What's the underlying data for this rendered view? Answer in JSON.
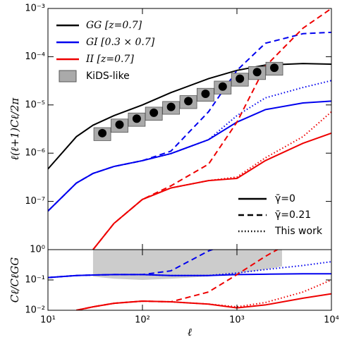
{
  "chart_data": [
    {
      "type": "line",
      "ylabel": "ℓ(ℓ+1)Cℓ/2π",
      "log_x": true,
      "log_y": true,
      "xlim": [
        10,
        10000
      ],
      "ylim": [
        1e-08,
        0.001
      ],
      "yticks": [
        {
          "value": 1e-07,
          "label": "10⁻⁷"
        },
        {
          "value": 1e-06,
          "label": "10⁻⁶"
        },
        {
          "value": 1e-05,
          "label": "10⁻⁵"
        },
        {
          "value": 0.0001,
          "label": "10⁻⁴"
        },
        {
          "value": 0.001,
          "label": "10⁻³"
        }
      ],
      "x": [
        10,
        20,
        30,
        50,
        100,
        200,
        500,
        1000,
        2000,
        5000,
        10000
      ],
      "series": [
        {
          "color": "#000000",
          "dash": "solid",
          "values": [
            4.7e-07,
            2.2e-06,
            3.8e-06,
            6e-06,
            1e-05,
            1.8e-05,
            3.5e-05,
            5.2e-05,
            6.7e-05,
            7.2e-05,
            7e-05
          ]
        },
        {
          "color": "#0000ee",
          "dash": "solid",
          "values": [
            6.3e-08,
            2.4e-07,
            3.8e-07,
            5.3e-07,
            7e-07,
            9.8e-07,
            1.9e-06,
            4.4e-06,
            8e-06,
            1.1e-05,
            1.2e-05
          ]
        },
        {
          "color": "#0000ee",
          "dash": "dashed",
          "values": [
            6.3e-08,
            2.4e-07,
            3.8e-07,
            5.3e-07,
            7e-07,
            1.1e-06,
            7.2e-06,
            5.2e-05,
            0.00019,
            0.0003,
            0.00032
          ]
        },
        {
          "color": "#0000ee",
          "dash": "dotted",
          "values": [
            6.3e-08,
            2.4e-07,
            3.8e-07,
            5.3e-07,
            7e-07,
            9.8e-07,
            1.9e-06,
            6e-06,
            1.4e-05,
            2.3e-05,
            3.2e-05
          ]
        },
        {
          "color": "#ee0000",
          "dash": "solid",
          "values": [
            null,
            null,
            1e-08,
            3.5e-08,
            1.1e-07,
            1.9e-07,
            2.7e-07,
            3e-07,
            7e-07,
            1.6e-06,
            2.6e-06
          ]
        },
        {
          "color": "#ee0000",
          "dash": "dashed",
          "values": [
            null,
            null,
            1e-08,
            3.5e-08,
            1.1e-07,
            2.1e-07,
            5.9e-07,
            4.4e-06,
            6.3e-05,
            0.00039,
            0.001
          ]
        },
        {
          "color": "#ee0000",
          "dash": "dotted",
          "values": [
            null,
            null,
            1e-08,
            3.5e-08,
            1.1e-07,
            1.9e-07,
            2.7e-07,
            3.2e-07,
            8e-07,
            2.2e-06,
            7.2e-06
          ]
        }
      ],
      "points": {
        "name": "KiDS-like",
        "color": "#000000",
        "box_color": "#aaaaaa",
        "x": [
          37.6,
          57.2,
          87,
          132,
          201,
          306,
          465,
          707,
          1075,
          1635,
          2487
        ],
        "values": [
          2.6e-06,
          3.9e-06,
          5.2e-06,
          6.9e-06,
          9.1e-06,
          1.2e-05,
          1.7e-05,
          2.4e-05,
          3.5e-05,
          4.8e-05,
          5.9e-05
        ],
        "errors": [
          7.8e-07,
          1.2e-06,
          1.6e-06,
          2.1e-06,
          2.7e-06,
          3.6e-06,
          5.1e-06,
          7.2e-06,
          1.05e-05,
          1.44e-05,
          1.77e-05
        ]
      },
      "legend": [
        {
          "label": "GG [z=0.7]",
          "color": "#000000"
        },
        {
          "label": "GI [0.3 × 0.7]",
          "color": "#0000ee"
        },
        {
          "label": "II [z=0.7]",
          "color": "#ee0000"
        }
      ],
      "style_legend": [
        {
          "label": "γ̄=0",
          "dash": "solid"
        },
        {
          "label": "γ̄=0.21",
          "dash": "dashed"
        },
        {
          "label": "This work",
          "dash": "dotted"
        }
      ]
    },
    {
      "type": "line",
      "ylabel": "Cℓ/CℓGG",
      "xlabel": "ℓ",
      "log_x": true,
      "log_y": true,
      "xlim": [
        10,
        10000
      ],
      "ylim": [
        0.01,
        1
      ],
      "xticks": [
        {
          "value": 10,
          "label": "10¹"
        },
        {
          "value": 100,
          "label": "10²"
        },
        {
          "value": 1000,
          "label": "10³"
        },
        {
          "value": 10000,
          "label": "10⁴"
        }
      ],
      "yticks": [
        {
          "value": 0.01,
          "label": "10⁻²"
        },
        {
          "value": 0.1,
          "label": "10⁻¹"
        },
        {
          "value": 1,
          "label": "10⁰"
        }
      ],
      "band": {
        "color": "#cccccc",
        "x": [
          30,
          50,
          100,
          200,
          500,
          1000,
          2000,
          3000
        ],
        "lower": [
          0.13,
          0.11,
          0.1,
          0.11,
          0.13,
          0.16,
          0.22,
          0.28
        ],
        "upper": [
          1,
          1,
          1,
          1,
          1,
          1,
          1,
          1
        ]
      },
      "x": [
        10,
        20,
        30,
        50,
        100,
        200,
        500,
        1000,
        2000,
        5000,
        10000
      ],
      "series": [
        {
          "color": "#0000ee",
          "dash": "solid",
          "values": [
            0.12,
            0.14,
            0.145,
            0.15,
            0.15,
            0.14,
            0.14,
            0.15,
            0.155,
            0.16,
            0.16
          ]
        },
        {
          "color": "#0000ee",
          "dash": "dashed",
          "values": [
            0.12,
            0.14,
            0.145,
            0.15,
            0.15,
            0.2,
            0.9,
            2,
            null,
            null,
            null
          ]
        },
        {
          "color": "#0000ee",
          "dash": "dotted",
          "values": [
            0.12,
            0.14,
            0.145,
            0.15,
            0.15,
            0.14,
            0.14,
            0.17,
            0.22,
            0.3,
            0.4
          ]
        },
        {
          "color": "#ee0000",
          "dash": "solid",
          "values": [
            null,
            0.01,
            0.013,
            0.017,
            0.02,
            0.019,
            0.016,
            0.012,
            0.015,
            0.025,
            0.035
          ]
        },
        {
          "color": "#ee0000",
          "dash": "dashed",
          "values": [
            null,
            0.01,
            0.013,
            0.017,
            0.02,
            0.019,
            0.04,
            0.15,
            0.6,
            3,
            null
          ]
        },
        {
          "color": "#ee0000",
          "dash": "dotted",
          "values": [
            null,
            0.01,
            0.013,
            0.017,
            0.02,
            0.019,
            0.016,
            0.013,
            0.018,
            0.04,
            0.1
          ]
        }
      ]
    }
  ]
}
